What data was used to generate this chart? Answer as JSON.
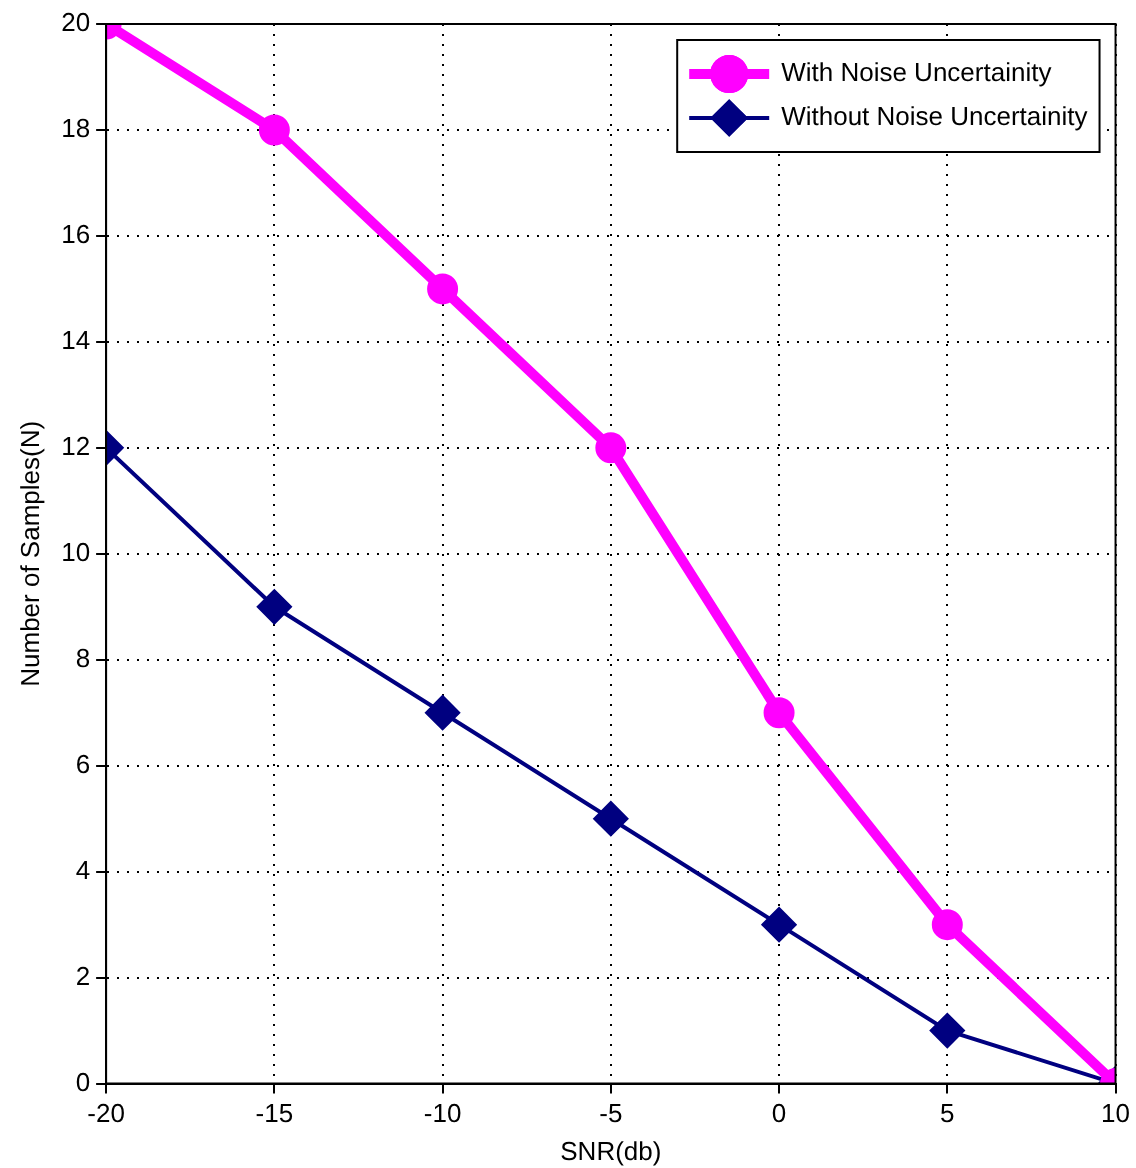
{
  "chart_data": {
    "type": "line",
    "xlabel": "SNR(db)",
    "ylabel": "Number of Samples(N)",
    "x": [
      -20,
      -15,
      -10,
      -5,
      0,
      5,
      10
    ],
    "series": [
      {
        "name": "With Noise Uncertainity",
        "color": "#ff00ff",
        "marker": "circle",
        "values": [
          20,
          18,
          15,
          12,
          7,
          3,
          0
        ]
      },
      {
        "name": "Without Noise Uncertainity",
        "color": "#000080",
        "marker": "diamond",
        "values": [
          12,
          9,
          7,
          5,
          3,
          1,
          0
        ]
      }
    ],
    "xlim": [
      -20,
      10
    ],
    "xticks": [
      -20,
      -15,
      -10,
      -5,
      0,
      5,
      10
    ],
    "ylim": [
      0,
      20
    ],
    "yticks": [
      0,
      2,
      4,
      6,
      8,
      10,
      12,
      14,
      16,
      18,
      20
    ],
    "grid": true,
    "legend": "top right",
    "line_style": "solid"
  }
}
